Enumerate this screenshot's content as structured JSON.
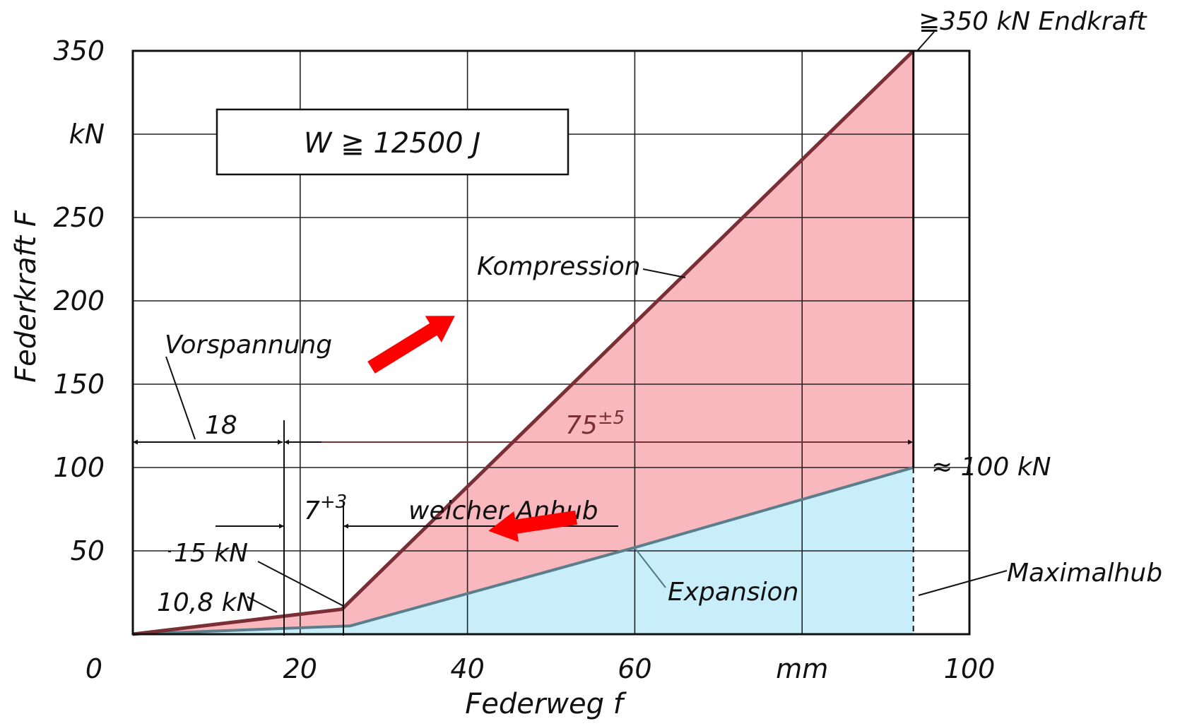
{
  "chart_data": {
    "type": "area",
    "xlabel": "Federweg  f",
    "ylabel": "Federkraft  F",
    "x_unit": "mm",
    "y_unit": "kN",
    "xlim": [
      0,
      100
    ],
    "ylim": [
      0,
      350
    ],
    "grid": true,
    "x_ticks": [
      {
        "value": 0,
        "label": "0"
      },
      {
        "value": 20,
        "label": "20"
      },
      {
        "value": 40,
        "label": "40"
      },
      {
        "value": 60,
        "label": "60"
      },
      {
        "value": 80,
        "label": "mm"
      },
      {
        "value": 100,
        "label": "100"
      }
    ],
    "y_ticks": [
      {
        "value": 50,
        "label": "50"
      },
      {
        "value": 100,
        "label": "100"
      },
      {
        "value": 150,
        "label": "150"
      },
      {
        "value": 200,
        "label": "200"
      },
      {
        "value": 250,
        "label": "250"
      },
      {
        "value": 300,
        "label": "kN"
      },
      {
        "value": 350,
        "label": "350"
      }
    ],
    "series": [
      {
        "name": "Kompression",
        "color": "#7a2e36",
        "fill": "#f9b8bd",
        "x": [
          0,
          18,
          25,
          93.3,
          93.3
        ],
        "y": [
          0,
          10.8,
          15,
          350,
          100
        ]
      },
      {
        "name": "Expansion",
        "color": "#5a7e8c",
        "fill": "#c8eefa",
        "x": [
          0,
          26,
          60,
          93.3
        ],
        "y": [
          0,
          5,
          52,
          100
        ]
      }
    ],
    "annotations": {
      "energy_box": "W ≧ 12500 J",
      "endkraft": "≧350 kN  Endkraft",
      "approx_100": "≈ 100 kN",
      "vorspannung": "Vorspannung",
      "dim_18": "18",
      "dim_7_base": "7",
      "dim_7_sup": "+3",
      "dim_75_base": "75",
      "dim_75_sup": "±5",
      "weicher_anhub": "weicher  Anhub",
      "label_15kn": "15 kN",
      "label_10_8kn": "10,8 kN",
      "kompression": "Kompression",
      "expansion": "Expansion",
      "maximalhub": "Maximalhub"
    },
    "arrow_color": "#ff0000"
  }
}
